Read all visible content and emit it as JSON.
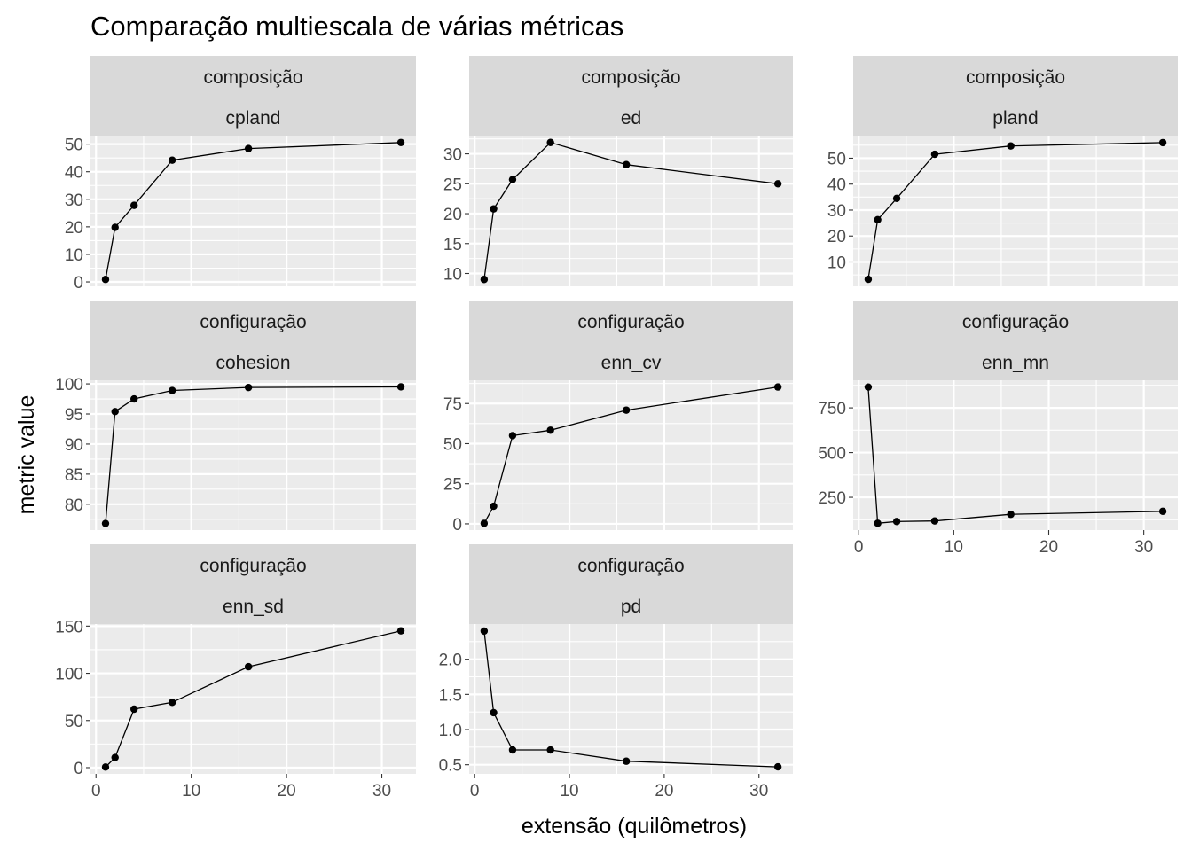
{
  "chart_data": {
    "type": "line",
    "title": "Comparação multiescala de várias métricas",
    "xlabel": "extensão (quilômetros)",
    "ylabel": "metric value",
    "grid": true,
    "x_ticks": [
      0,
      10,
      20,
      30
    ],
    "x_tick_labels": [
      "0",
      "10",
      "20",
      "30"
    ],
    "xlim": [
      -0.58,
      33.58
    ],
    "colors": {
      "panel_background": "#ebebeb",
      "strip_background": "#d9d9d9",
      "grid": "#ffffff",
      "line": "#000000",
      "point": "#000000"
    },
    "panels": [
      {
        "strip_top": "composição",
        "strip_bottom": "cpland",
        "x": [
          1,
          2,
          4,
          8,
          16,
          32
        ],
        "y": [
          0.9,
          19.8,
          27.8,
          44.2,
          48.4,
          50.6
        ],
        "ylim": [
          -1.6,
          53.1
        ],
        "y_ticks": [
          0,
          10,
          20,
          30,
          40,
          50
        ],
        "y_tick_labels": [
          "0",
          "10",
          "20",
          "30",
          "40",
          "50"
        ],
        "show_x_axis": false
      },
      {
        "strip_top": "composição",
        "strip_bottom": "ed",
        "x": [
          1,
          2,
          4,
          8,
          16,
          32
        ],
        "y": [
          9.0,
          20.8,
          25.7,
          31.9,
          28.2,
          25.0
        ],
        "ylim": [
          7.85,
          33.05
        ],
        "y_ticks": [
          10,
          15,
          20,
          25,
          30
        ],
        "y_tick_labels": [
          "10",
          "15",
          "20",
          "25",
          "30"
        ],
        "show_x_axis": false
      },
      {
        "strip_top": "composição",
        "strip_bottom": "pland",
        "x": [
          1,
          2,
          4,
          8,
          16,
          32
        ],
        "y": [
          3.3,
          26.3,
          34.5,
          51.5,
          54.7,
          56.0
        ],
        "ylim": [
          0.6,
          58.7
        ],
        "y_ticks": [
          10,
          20,
          30,
          40,
          50
        ],
        "y_tick_labels": [
          "10",
          "20",
          "30",
          "40",
          "50"
        ],
        "show_x_axis": false
      },
      {
        "strip_top": "configuração",
        "strip_bottom": "cohesion",
        "x": [
          1,
          2,
          4,
          8,
          16,
          32
        ],
        "y": [
          76.8,
          95.4,
          97.5,
          98.9,
          99.4,
          99.5
        ],
        "ylim": [
          75.7,
          100.6
        ],
        "y_ticks": [
          80,
          85,
          90,
          95,
          100
        ],
        "y_tick_labels": [
          "80",
          "85",
          "90",
          "95",
          "100"
        ],
        "show_x_axis": false
      },
      {
        "strip_top": "configuração",
        "strip_bottom": "enn_cv",
        "x": [
          1,
          2,
          4,
          8,
          16,
          32
        ],
        "y": [
          0.3,
          11.0,
          55.0,
          58.4,
          70.9,
          85.3
        ],
        "ylim": [
          -3.9,
          89.5
        ],
        "y_ticks": [
          0,
          25,
          50,
          75
        ],
        "y_tick_labels": [
          "0",
          "25",
          "50",
          "75"
        ],
        "show_x_axis": false
      },
      {
        "strip_top": "configuração",
        "strip_bottom": "enn_mn",
        "x": [
          1,
          2,
          4,
          8,
          16,
          32
        ],
        "y": [
          866,
          105,
          115,
          118,
          155,
          172
        ],
        "ylim": [
          67,
          904
        ],
        "y_ticks": [
          250,
          500,
          750
        ],
        "y_tick_labels": [
          "250",
          "500",
          "750"
        ],
        "show_x_axis": true
      },
      {
        "strip_top": "configuração",
        "strip_bottom": "enn_sd",
        "x": [
          1,
          2,
          4,
          8,
          16,
          32
        ],
        "y": [
          0.6,
          10.7,
          62.0,
          69.2,
          107.0,
          145.0
        ],
        "ylim": [
          -6.6,
          152.2
        ],
        "y_ticks": [
          0,
          50,
          100,
          150
        ],
        "y_tick_labels": [
          "0",
          "50",
          "100",
          "150"
        ],
        "show_x_axis": true
      },
      {
        "strip_top": "configuração",
        "strip_bottom": "pd",
        "x": [
          1,
          2,
          4,
          8,
          16,
          32
        ],
        "y": [
          2.4,
          1.24,
          0.71,
          0.71,
          0.55,
          0.47
        ],
        "ylim": [
          0.37,
          2.5
        ],
        "y_ticks": [
          0.5,
          1.0,
          1.5,
          2.0
        ],
        "y_tick_labels": [
          "0.5",
          "1.0",
          "1.5",
          "2.0"
        ],
        "show_x_axis": true
      }
    ]
  }
}
